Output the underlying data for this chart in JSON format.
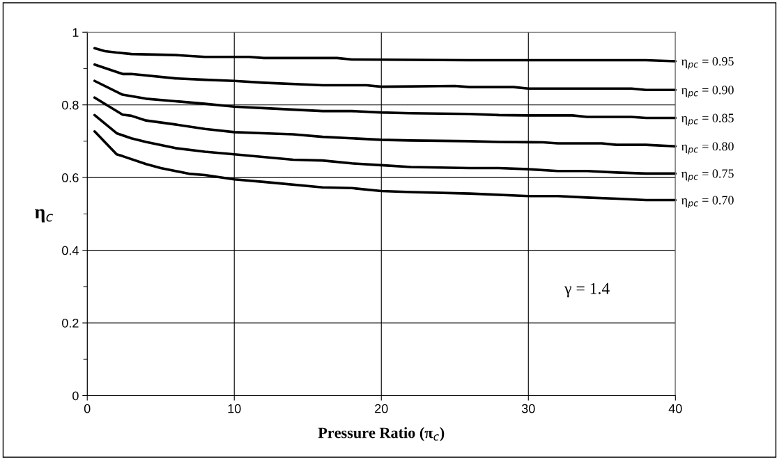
{
  "chart_data": {
    "type": "line",
    "xlabel": "Pressure Ratio (π$_{c}$)",
    "ylabel": "η$_{c}$",
    "xlim": [
      0,
      40
    ],
    "xticks": [
      0,
      10,
      20,
      30,
      40
    ],
    "ylim": [
      0,
      1
    ],
    "yticks": [
      0,
      {
        "value": 0.1,
        "label": null
      },
      0.2,
      {
        "value": 0.3,
        "label": null
      },
      0.4,
      {
        "value": 0.5,
        "label": null
      },
      0.6,
      {
        "value": 0.7,
        "label": null
      },
      0.8,
      {
        "value": 0.9,
        "label": null
      },
      1
    ],
    "grid": true,
    "legend": false,
    "marker": "none",
    "line_style": "solid",
    "annotations": [
      "γ = 1.4"
    ],
    "series": [
      {
        "name": "η$_{pc}$ = 0.95",
        "color": "#000000",
        "x": [
          0.5,
          1.2,
          2,
          3,
          6,
          8,
          11,
          12,
          17,
          18,
          26,
          38,
          40
        ],
        "values": [
          0.956,
          0.948,
          0.944,
          0.94,
          0.937,
          0.932,
          0.932,
          0.929,
          0.929,
          0.925,
          0.923,
          0.923,
          0.92
        ]
      },
      {
        "name": "η$_{pc}$ = 0.90",
        "color": "#000000",
        "x": [
          0.5,
          2.4,
          3,
          6,
          8,
          10,
          12,
          16,
          19,
          20,
          25,
          26,
          29,
          30,
          37,
          38,
          40
        ],
        "values": [
          0.911,
          0.885,
          0.885,
          0.873,
          0.869,
          0.866,
          0.861,
          0.854,
          0.854,
          0.85,
          0.852,
          0.849,
          0.849,
          0.845,
          0.845,
          0.841,
          0.841
        ]
      },
      {
        "name": "η$_{pc}$ = 0.85",
        "color": "#000000",
        "x": [
          0.5,
          2.4,
          4,
          6,
          8,
          10,
          12,
          16,
          18,
          20,
          22,
          26,
          28,
          30,
          33,
          34,
          37,
          38,
          40
        ],
        "values": [
          0.866,
          0.828,
          0.817,
          0.81,
          0.803,
          0.795,
          0.791,
          0.783,
          0.783,
          0.779,
          0.777,
          0.775,
          0.772,
          0.771,
          0.771,
          0.767,
          0.767,
          0.764,
          0.764
        ]
      },
      {
        "name": "η$_{pc}$ = 0.80",
        "color": "#000000",
        "x": [
          0.5,
          2.4,
          3,
          4,
          6,
          8,
          10,
          12,
          14,
          16,
          18,
          20,
          22,
          26,
          28,
          31,
          32,
          35,
          36,
          38,
          40
        ],
        "values": [
          0.82,
          0.773,
          0.77,
          0.757,
          0.746,
          0.734,
          0.725,
          0.722,
          0.719,
          0.712,
          0.708,
          0.704,
          0.702,
          0.7,
          0.698,
          0.697,
          0.694,
          0.694,
          0.69,
          0.69,
          0.686
        ]
      },
      {
        "name": "η$_{pc}$ = 0.75",
        "color": "#000000",
        "x": [
          0.5,
          2,
          3,
          4,
          6,
          8,
          10,
          14,
          16,
          18,
          20,
          22,
          26,
          28,
          30,
          32,
          34,
          36,
          38,
          40
        ],
        "values": [
          0.772,
          0.722,
          0.708,
          0.698,
          0.681,
          0.671,
          0.664,
          0.649,
          0.647,
          0.639,
          0.634,
          0.629,
          0.626,
          0.626,
          0.623,
          0.618,
          0.618,
          0.614,
          0.611,
          0.611
        ]
      },
      {
        "name": "η$_{pc}$ = 0.70",
        "color": "#000000",
        "x": [
          0.5,
          2,
          2.4,
          4,
          5,
          7,
          8,
          10,
          12,
          16,
          18,
          20,
          22,
          26,
          30,
          32,
          34,
          36,
          38,
          40
        ],
        "values": [
          0.727,
          0.664,
          0.659,
          0.637,
          0.626,
          0.61,
          0.607,
          0.595,
          0.588,
          0.573,
          0.571,
          0.563,
          0.56,
          0.556,
          0.549,
          0.549,
          0.545,
          0.542,
          0.538,
          0.538
        ]
      }
    ]
  }
}
